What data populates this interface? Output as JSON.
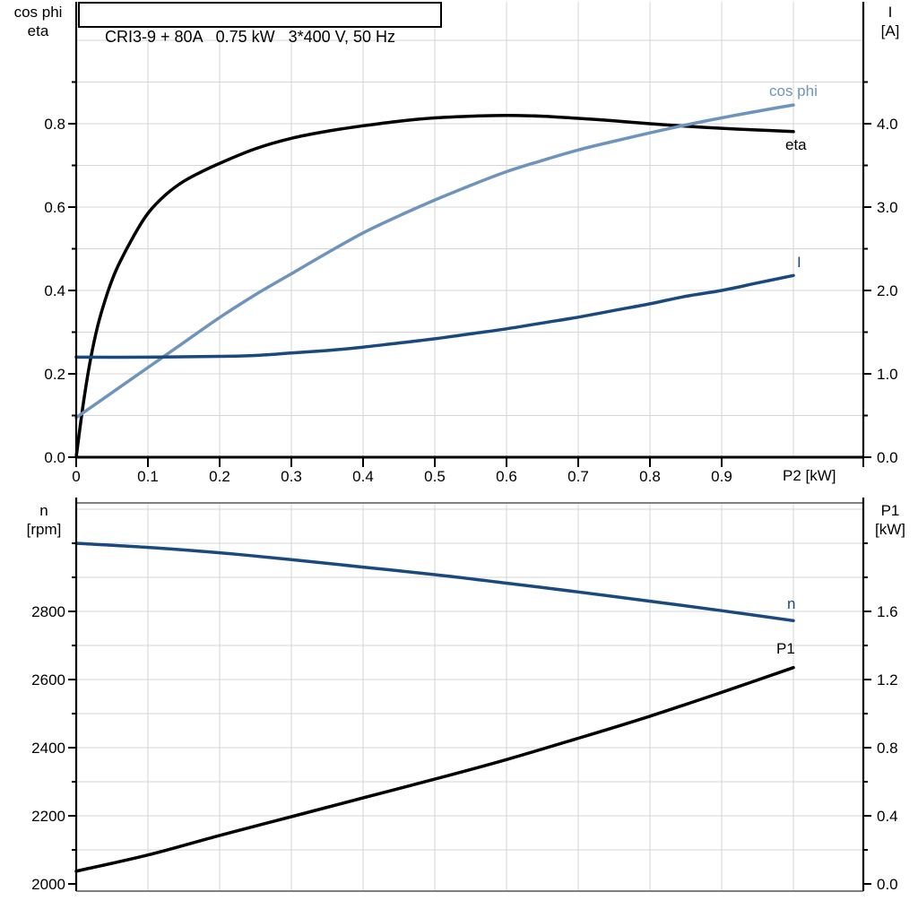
{
  "page": {
    "background": "#ffffff"
  },
  "colors": {
    "black": "#000000",
    "light_blue": "#6e94bc",
    "dark_blue": "#1a4a7d",
    "gridline": "#d4d4d4",
    "frame_gray": "#808080"
  },
  "chart_data": [
    {
      "id": "motor-electrical-curves",
      "type": "line",
      "title": "CRI3-9 + 80A   0.75 kW   3*400 V, 50 Hz",
      "x_axis": {
        "label": "P2 [kW]",
        "min": 0,
        "max": 1.1,
        "grid_step": 0.1,
        "tick_values": [
          0,
          0.1,
          0.2,
          0.3,
          0.4,
          0.5,
          0.6,
          0.7,
          0.8,
          0.9
        ],
        "tick_labels": [
          "0",
          "0.1",
          "0.2",
          "0.3",
          "0.4",
          "0.5",
          "0.6",
          "0.7",
          "0.8",
          "0.9"
        ]
      },
      "y_left": {
        "label_lines": [
          "cos phi",
          "eta"
        ],
        "min": 0,
        "max": 1.0,
        "grid_step": 0.1,
        "major_tick_values": [
          0,
          0.2,
          0.4,
          0.6,
          0.8
        ],
        "major_tick_labels": [
          "0.0",
          "0.2",
          "0.4",
          "0.6",
          "0.8"
        ],
        "minor_tick_values": [
          0.1,
          0.3,
          0.5,
          0.7,
          0.9
        ]
      },
      "y_right": {
        "label_lines": [
          "I",
          "[A]"
        ],
        "min": 0,
        "max": 5.0,
        "major_tick_values": [
          0,
          1,
          2,
          3,
          4
        ],
        "major_tick_labels": [
          "0.0",
          "1.0",
          "2.0",
          "3.0",
          "4.0"
        ],
        "minor_tick_values": [
          0.5,
          1.5,
          2.5,
          3.5,
          4.5
        ]
      },
      "legend_position": "curve-end-labels",
      "grid": true,
      "series": [
        {
          "name": "eta",
          "label": "eta",
          "axis": "left",
          "color_key": "black",
          "points": [
            [
              0,
              0
            ],
            [
              0.01,
              0.13
            ],
            [
              0.02,
              0.235
            ],
            [
              0.03,
              0.315
            ],
            [
              0.04,
              0.375
            ],
            [
              0.05,
              0.425
            ],
            [
              0.06,
              0.465
            ],
            [
              0.08,
              0.53
            ],
            [
              0.1,
              0.585
            ],
            [
              0.125,
              0.63
            ],
            [
              0.15,
              0.662
            ],
            [
              0.175,
              0.685
            ],
            [
              0.2,
              0.705
            ],
            [
              0.25,
              0.74
            ],
            [
              0.3,
              0.765
            ],
            [
              0.35,
              0.782
            ],
            [
              0.4,
              0.795
            ],
            [
              0.45,
              0.806
            ],
            [
              0.5,
              0.814
            ],
            [
              0.55,
              0.818
            ],
            [
              0.6,
              0.82
            ],
            [
              0.65,
              0.818
            ],
            [
              0.7,
              0.813
            ],
            [
              0.75,
              0.807
            ],
            [
              0.8,
              0.8
            ],
            [
              0.85,
              0.794
            ],
            [
              0.9,
              0.789
            ],
            [
              0.95,
              0.785
            ],
            [
              1,
              0.781
            ]
          ]
        },
        {
          "name": "cos phi",
          "label": "cos phi",
          "axis": "left",
          "color_key": "light_blue",
          "points": [
            [
              0,
              0.095
            ],
            [
              0.05,
              0.155
            ],
            [
              0.1,
              0.215
            ],
            [
              0.15,
              0.275
            ],
            [
              0.2,
              0.335
            ],
            [
              0.25,
              0.39
            ],
            [
              0.3,
              0.44
            ],
            [
              0.35,
              0.49
            ],
            [
              0.4,
              0.538
            ],
            [
              0.45,
              0.579
            ],
            [
              0.5,
              0.617
            ],
            [
              0.55,
              0.652
            ],
            [
              0.6,
              0.685
            ],
            [
              0.65,
              0.712
            ],
            [
              0.7,
              0.737
            ],
            [
              0.75,
              0.758
            ],
            [
              0.8,
              0.778
            ],
            [
              0.85,
              0.797
            ],
            [
              0.9,
              0.814
            ],
            [
              0.95,
              0.83
            ],
            [
              1,
              0.845
            ]
          ]
        },
        {
          "name": "I",
          "label": "I",
          "axis": "right",
          "color_key": "dark_blue",
          "points": [
            [
              0,
              1.2
            ],
            [
              0.1,
              1.2
            ],
            [
              0.2,
              1.21
            ],
            [
              0.25,
              1.22
            ],
            [
              0.3,
              1.25
            ],
            [
              0.35,
              1.28
            ],
            [
              0.4,
              1.32
            ],
            [
              0.45,
              1.37
            ],
            [
              0.5,
              1.42
            ],
            [
              0.55,
              1.48
            ],
            [
              0.6,
              1.54
            ],
            [
              0.65,
              1.61
            ],
            [
              0.7,
              1.68
            ],
            [
              0.75,
              1.76
            ],
            [
              0.8,
              1.84
            ],
            [
              0.85,
              1.93
            ],
            [
              0.9,
              2.0
            ],
            [
              0.95,
              2.09
            ],
            [
              1,
              2.18
            ]
          ]
        }
      ]
    },
    {
      "id": "speed-and-input-power-curves",
      "type": "line",
      "x_axis": {
        "label": "",
        "min": 0,
        "max": 1.1,
        "grid_step": 0.1,
        "tick_values": [],
        "tick_labels": []
      },
      "y_left": {
        "label_lines": [
          "n",
          "[rpm]"
        ],
        "min": 2000,
        "max": 3100,
        "grid_step": 100,
        "major_tick_values": [
          2000,
          2200,
          2400,
          2600,
          2800
        ],
        "major_tick_labels": [
          "2000",
          "2200",
          "2400",
          "2600",
          "2800"
        ],
        "minor_tick_values": [
          2100,
          2300,
          2500,
          2700,
          2900,
          3000
        ]
      },
      "y_right": {
        "label_lines": [
          "P1",
          "[kW]"
        ],
        "min": 0,
        "max": 2.2,
        "major_tick_values": [
          0,
          0.4,
          0.8,
          1.2,
          1.6
        ],
        "major_tick_labels": [
          "0.0",
          "0.4",
          "0.8",
          "1.2",
          "1.6"
        ],
        "minor_tick_values": [
          0.2,
          0.6,
          1.0,
          1.4,
          1.8,
          2.0
        ]
      },
      "legend_position": "curve-end-labels",
      "grid": true,
      "series": [
        {
          "name": "n",
          "label": "n",
          "axis": "left",
          "color_key": "dark_blue",
          "points": [
            [
              0,
              3000
            ],
            [
              0.1,
              2988
            ],
            [
              0.2,
              2972
            ],
            [
              0.3,
              2952
            ],
            [
              0.4,
              2930
            ],
            [
              0.5,
              2908
            ],
            [
              0.6,
              2883
            ],
            [
              0.7,
              2857
            ],
            [
              0.8,
              2830
            ],
            [
              0.9,
              2802
            ],
            [
              1,
              2773
            ]
          ]
        },
        {
          "name": "P1",
          "label": "P1",
          "axis": "right",
          "color_key": "black",
          "points": [
            [
              0,
              0.075
            ],
            [
              0.1,
              0.17
            ],
            [
              0.2,
              0.285
            ],
            [
              0.3,
              0.395
            ],
            [
              0.4,
              0.505
            ],
            [
              0.5,
              0.615
            ],
            [
              0.6,
              0.73
            ],
            [
              0.7,
              0.855
            ],
            [
              0.8,
              0.985
            ],
            [
              0.9,
              1.125
            ],
            [
              1,
              1.27
            ]
          ]
        }
      ]
    }
  ]
}
